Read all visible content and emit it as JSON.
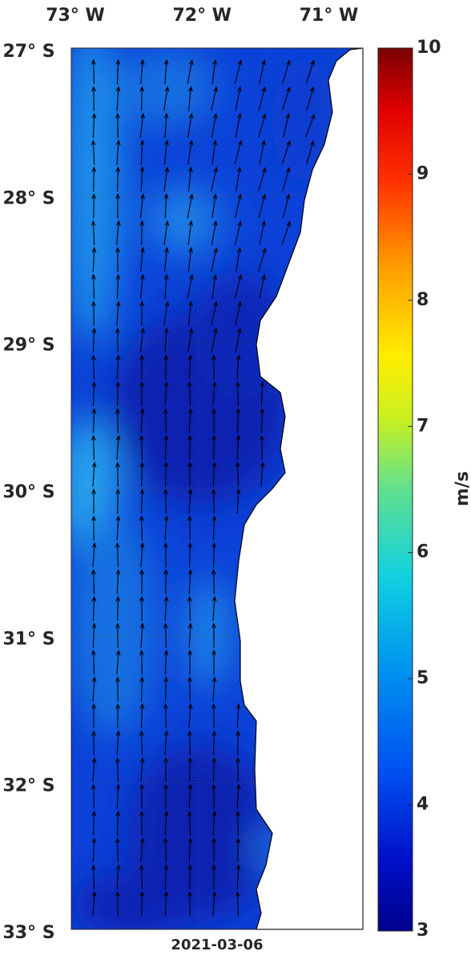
{
  "map": {
    "lon_ticks": [
      {
        "value": -73,
        "label": "73° W"
      },
      {
        "value": -72,
        "label": "72° W"
      },
      {
        "value": -71,
        "label": "71° W"
      }
    ],
    "lat_ticks": [
      {
        "value": -27,
        "label": "27° S"
      },
      {
        "value": -28,
        "label": "28° S"
      },
      {
        "value": -29,
        "label": "29° S"
      },
      {
        "value": -30,
        "label": "30° S"
      },
      {
        "value": -31,
        "label": "31° S"
      },
      {
        "value": -32,
        "label": "32° S"
      },
      {
        "value": -33,
        "label": "33° S"
      }
    ],
    "xlim": [
      -73.0,
      -70.7
    ],
    "ylim": [
      -27,
      -33
    ],
    "colorbar": {
      "lim": [
        3,
        10
      ],
      "ticks": [
        3,
        4,
        5,
        6,
        7,
        8,
        9,
        10
      ],
      "label": "m/s"
    },
    "date": "2021-03-06"
  }
}
